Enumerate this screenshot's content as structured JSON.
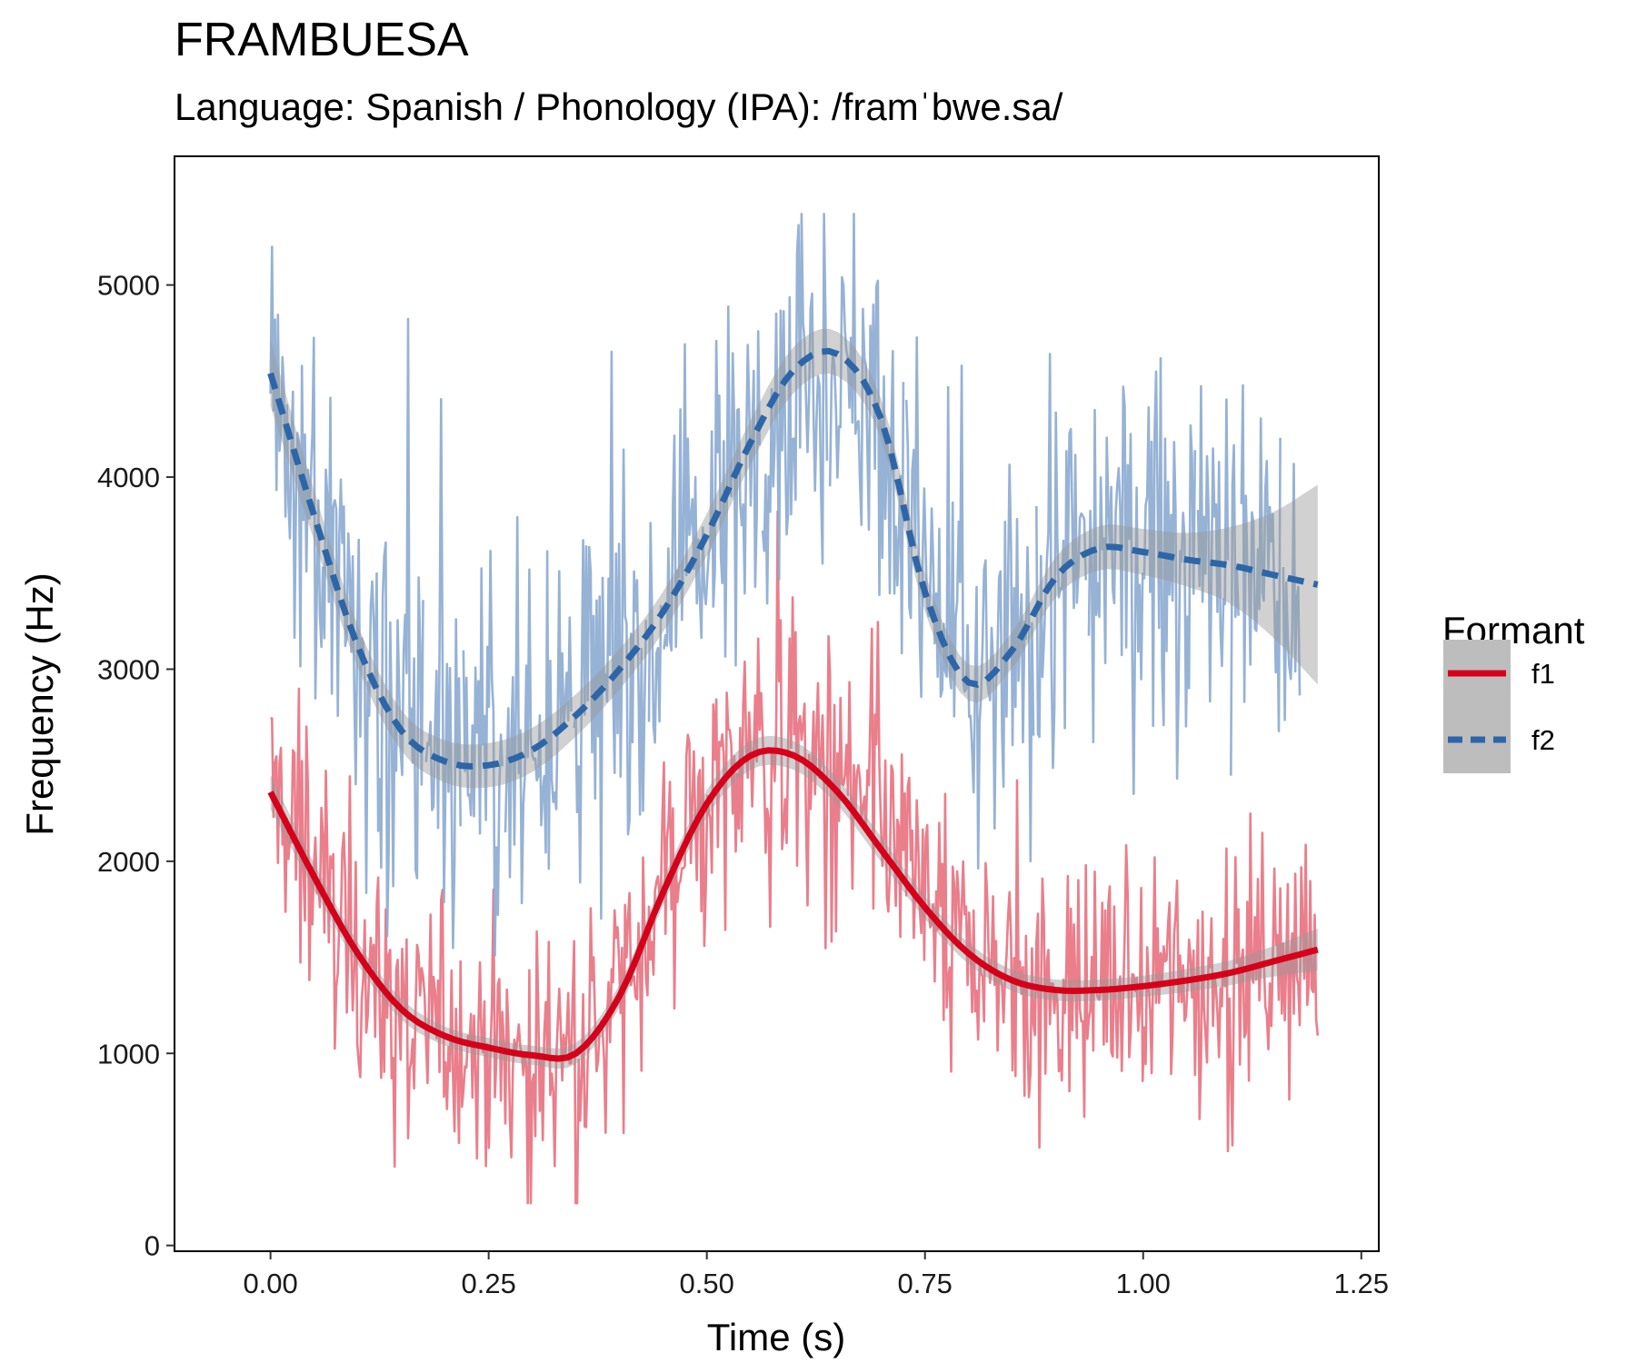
{
  "chart_data": {
    "type": "line",
    "title": "FRAMBUESA",
    "subtitle": "Language: Spanish / Phonology (IPA): /framˈbwe.sa/",
    "xlabel": "Time (s)",
    "ylabel": "Frequency (Hz)",
    "xlim": [
      -0.11,
      1.27
    ],
    "ylim": [
      -30,
      5670
    ],
    "x_ticks": [
      0,
      0.25,
      0.5,
      0.75,
      1,
      1.25
    ],
    "x_tick_labels": [
      "0.00",
      "0.25",
      "0.50",
      "0.75",
      "1.00",
      "1.25"
    ],
    "y_ticks": [
      0,
      1000,
      2000,
      3000,
      4000,
      5000
    ],
    "y_tick_labels": [
      "0",
      "1000",
      "2000",
      "3000",
      "4000",
      "5000"
    ],
    "grid": false,
    "legend": {
      "title": "Formant",
      "position": "right",
      "entries": [
        {
          "label": "f1",
          "color": "#D7001B",
          "dash": "solid"
        },
        {
          "label": "f2",
          "color": "#2C66A8",
          "dash": "dashed"
        }
      ]
    },
    "x_range": [
      0,
      1.2
    ],
    "series": [
      {
        "name": "f1",
        "raw_color": "#E8707E",
        "smooth_color": "#D7001B",
        "raw_spread_hz": 450,
        "x": [
          0,
          0.05,
          0.1,
          0.15,
          0.2,
          0.25,
          0.3,
          0.35,
          0.4,
          0.45,
          0.5,
          0.55,
          0.6,
          0.65,
          0.7,
          0.75,
          0.8,
          0.85,
          0.9,
          0.95,
          1.0,
          1.05,
          1.1,
          1.15,
          1.2
        ],
        "smooth": [
          2360,
          1920,
          1520,
          1230,
          1090,
          1030,
          990,
          1000,
          1300,
          1840,
          2300,
          2550,
          2550,
          2360,
          2060,
          1760,
          1520,
          1380,
          1330,
          1330,
          1350,
          1380,
          1420,
          1480,
          1540
        ],
        "band": [
          90,
          70,
          60,
          55,
          50,
          50,
          50,
          55,
          60,
          65,
          70,
          75,
          75,
          70,
          65,
          60,
          55,
          55,
          55,
          55,
          55,
          60,
          65,
          80,
          110
        ]
      },
      {
        "name": "f2",
        "raw_color": "#8BAAD0",
        "smooth_color": "#2C66A8",
        "raw_spread_hz": 600,
        "x": [
          0,
          0.05,
          0.1,
          0.15,
          0.2,
          0.25,
          0.3,
          0.35,
          0.4,
          0.45,
          0.5,
          0.55,
          0.6,
          0.65,
          0.7,
          0.75,
          0.8,
          0.85,
          0.9,
          0.95,
          1.0,
          1.05,
          1.1,
          1.15,
          1.2
        ],
        "smooth": [
          4540,
          3800,
          3120,
          2680,
          2520,
          2500,
          2580,
          2760,
          3000,
          3300,
          3700,
          4180,
          4560,
          4640,
          4300,
          3400,
          2930,
          3100,
          3480,
          3630,
          3610,
          3570,
          3540,
          3490,
          3440
        ],
        "band": [
          170,
          130,
          110,
          105,
          110,
          115,
          115,
          110,
          105,
          105,
          110,
          115,
          120,
          115,
          105,
          100,
          95,
          95,
          105,
          115,
          120,
          140,
          200,
          330,
          520
        ]
      }
    ]
  }
}
